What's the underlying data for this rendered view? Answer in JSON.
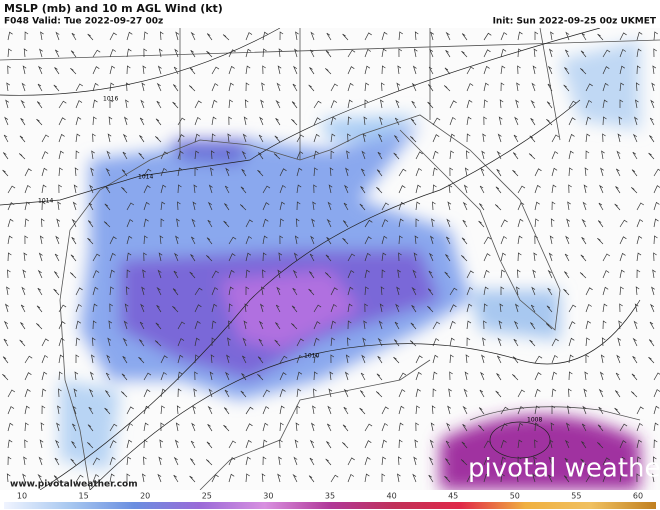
{
  "header": {
    "title": "MSLP (mb) and 10 m AGL Wind (kt)",
    "valid": "F048 Valid: Tue 2022-09-27 00z",
    "init": "Init: Sun 2022-09-25 00z UKMET"
  },
  "isobar_labels": [
    "1016",
    "1014",
    "1014",
    "1010",
    "1008"
  ],
  "footer": {
    "website": "www.pivotalweather.com",
    "logo": "pivotal weather"
  },
  "colorbar": {
    "ticks": [
      10,
      15,
      20,
      25,
      30,
      35,
      40,
      45,
      50,
      55,
      60
    ]
  }
}
